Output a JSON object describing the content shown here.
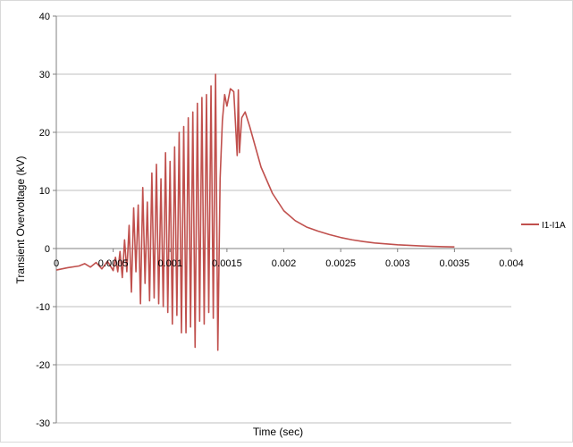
{
  "chart_data": {
    "type": "line",
    "title": "",
    "xlabel": "Time (sec)",
    "ylabel": "Transient Overvoltage (kV)",
    "xlim": [
      0,
      0.004
    ],
    "ylim": [
      -30,
      40
    ],
    "x_ticks": [
      "0",
      "0.0005",
      "0.001",
      "0.0015",
      "0.002",
      "0.0025",
      "0.003",
      "0.0035",
      "0.004"
    ],
    "y_ticks": [
      "-30",
      "-20",
      "-10",
      "0",
      "10",
      "20",
      "30",
      "40"
    ],
    "grid": "horizontal",
    "legend_position": "right",
    "series": [
      {
        "name": "I1-I1A",
        "color": "#c0504d",
        "x": [
          0,
          0.0001,
          0.0002,
          0.00025,
          0.0003,
          0.00035,
          0.0004,
          0.00045,
          0.0005,
          0.00052,
          0.00054,
          0.00056,
          0.00058,
          0.0006,
          0.00062,
          0.00064,
          0.00066,
          0.00068,
          0.0007,
          0.00072,
          0.00074,
          0.00076,
          0.00078,
          0.0008,
          0.00082,
          0.00084,
          0.00086,
          0.00088,
          0.0009,
          0.00092,
          0.00094,
          0.00096,
          0.00098,
          0.001,
          0.00102,
          0.00104,
          0.00106,
          0.00108,
          0.0011,
          0.00112,
          0.00114,
          0.00116,
          0.00118,
          0.0012,
          0.00122,
          0.00124,
          0.00126,
          0.00128,
          0.0013,
          0.00132,
          0.00134,
          0.00136,
          0.00138,
          0.0014,
          0.00142,
          0.00144,
          0.00146,
          0.00148,
          0.0015,
          0.00153,
          0.00156,
          0.00159,
          0.0016,
          0.00161,
          0.00163,
          0.00166,
          0.0017,
          0.0018,
          0.0019,
          0.002,
          0.0021,
          0.0022,
          0.0023,
          0.0024,
          0.0025,
          0.0026,
          0.0027,
          0.0028,
          0.0029,
          0.003,
          0.0031,
          0.0032,
          0.0033,
          0.0034,
          0.0035
        ],
        "values": [
          -3.7,
          -3.3,
          -3.0,
          -2.6,
          -3.2,
          -2.4,
          -3.5,
          -2.2,
          -3.8,
          -1.5,
          -4.0,
          -0.5,
          -5.0,
          1.5,
          -4.0,
          4.0,
          -7.5,
          7.0,
          -4.0,
          7.5,
          -9.5,
          10.5,
          -6.0,
          8.0,
          -9.0,
          13.0,
          -8.5,
          14.5,
          -9.5,
          12.0,
          -10.0,
          16.5,
          -11.0,
          15.0,
          -13.0,
          17.5,
          -11.5,
          20.0,
          -14.5,
          21.0,
          -14.5,
          22.5,
          -13.5,
          23.5,
          -17.0,
          25.0,
          -12.5,
          26.0,
          -13.0,
          26.5,
          -11.0,
          28.0,
          -12.0,
          30.0,
          -17.5,
          12.0,
          22.0,
          26.5,
          24.5,
          27.5,
          27.0,
          16.0,
          27.3,
          16.5,
          22.5,
          23.5,
          21.0,
          14.0,
          9.5,
          6.5,
          4.8,
          3.7,
          3.0,
          2.4,
          1.9,
          1.5,
          1.2,
          0.95,
          0.8,
          0.65,
          0.55,
          0.45,
          0.38,
          0.32,
          0.28
        ]
      }
    ]
  }
}
